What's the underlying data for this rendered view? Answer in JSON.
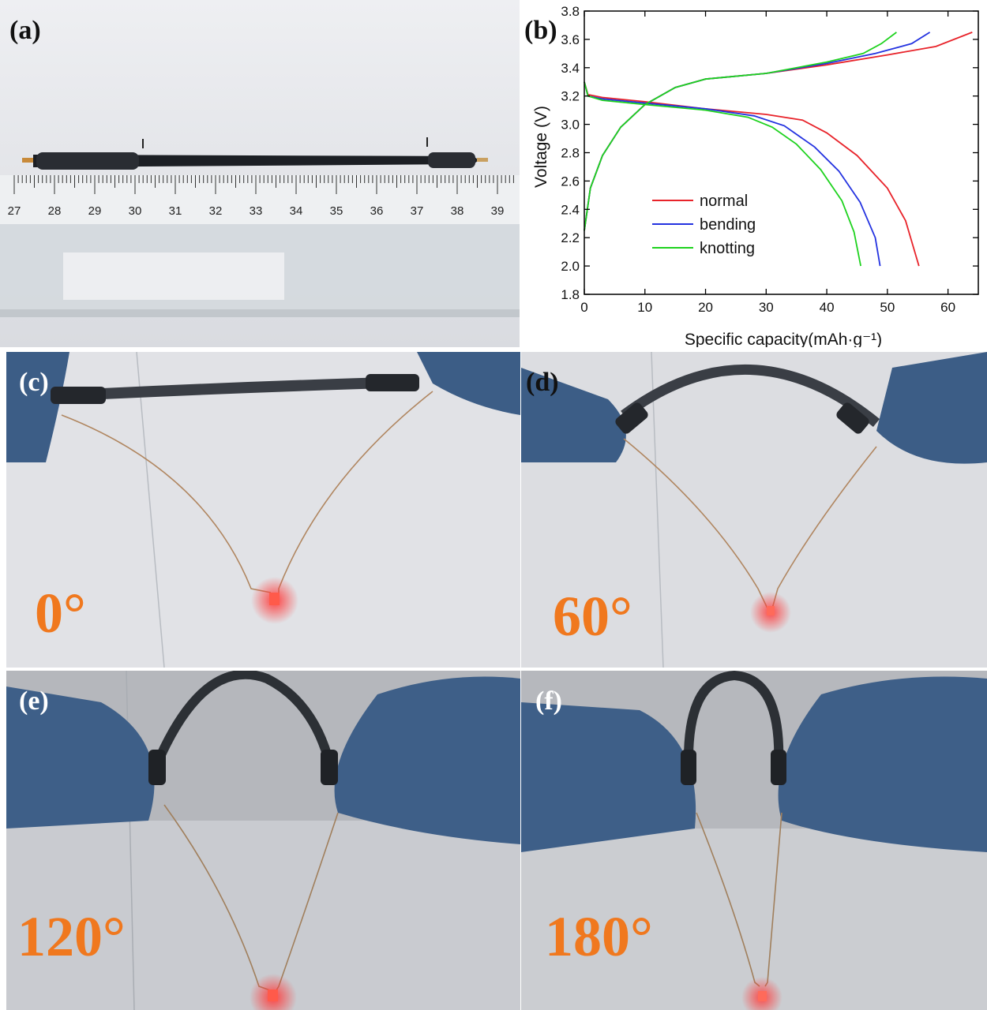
{
  "panels": {
    "a": {
      "label": "(a)",
      "ruler_ticks": [
        "27",
        "28",
        "29",
        "30",
        "31",
        "32",
        "33",
        "34",
        "35",
        "36",
        "37",
        "38",
        "39"
      ]
    },
    "b": {
      "label": "(b)"
    },
    "c": {
      "label": "(c)",
      "angle": "0°"
    },
    "d": {
      "label": "(d)",
      "angle": "60°"
    },
    "e": {
      "label": "(e)",
      "angle": "120°"
    },
    "f": {
      "label": "(f)",
      "angle": "180°"
    }
  },
  "chart_data": {
    "type": "line",
    "xlabel": "Specific capacity(mAh·g⁻¹)",
    "ylabel": "Voltage (V)",
    "xlim": [
      0,
      65
    ],
    "ylim": [
      1.8,
      3.8
    ],
    "xticks": [
      0,
      10,
      20,
      30,
      40,
      50,
      60
    ],
    "yticks": [
      1.8,
      2.0,
      2.2,
      2.4,
      2.6,
      2.8,
      3.0,
      3.2,
      3.4,
      3.6,
      3.8
    ],
    "legend_position": "center-left",
    "series": [
      {
        "name": "normal",
        "color": "#e8232a",
        "charge": [
          [
            0,
            2.25
          ],
          [
            1,
            2.55
          ],
          [
            3,
            2.78
          ],
          [
            6,
            2.98
          ],
          [
            10,
            3.14
          ],
          [
            15,
            3.26
          ],
          [
            20,
            3.32
          ],
          [
            30,
            3.36
          ],
          [
            40,
            3.42
          ],
          [
            50,
            3.49
          ],
          [
            58,
            3.55
          ],
          [
            64,
            3.65
          ]
        ],
        "discharge": [
          [
            0,
            3.3
          ],
          [
            0.6,
            3.21
          ],
          [
            3,
            3.19
          ],
          [
            10,
            3.16
          ],
          [
            20,
            3.11
          ],
          [
            30,
            3.07
          ],
          [
            36,
            3.03
          ],
          [
            40,
            2.94
          ],
          [
            45,
            2.78
          ],
          [
            50,
            2.55
          ],
          [
            53,
            2.32
          ],
          [
            55.2,
            2.0
          ]
        ]
      },
      {
        "name": "bending",
        "color": "#2332e0",
        "charge": [
          [
            0,
            2.25
          ],
          [
            1,
            2.55
          ],
          [
            3,
            2.78
          ],
          [
            6,
            2.98
          ],
          [
            10,
            3.14
          ],
          [
            15,
            3.26
          ],
          [
            20,
            3.32
          ],
          [
            30,
            3.36
          ],
          [
            40,
            3.43
          ],
          [
            48,
            3.5
          ],
          [
            54,
            3.57
          ],
          [
            57,
            3.65
          ]
        ],
        "discharge": [
          [
            0,
            3.3
          ],
          [
            0.6,
            3.2
          ],
          [
            3,
            3.18
          ],
          [
            10,
            3.15
          ],
          [
            20,
            3.11
          ],
          [
            28,
            3.06
          ],
          [
            33,
            2.99
          ],
          [
            38,
            2.84
          ],
          [
            42,
            2.67
          ],
          [
            45.5,
            2.45
          ],
          [
            48,
            2.2
          ],
          [
            48.8,
            2.0
          ]
        ]
      },
      {
        "name": "knotting",
        "color": "#1ed21e",
        "charge": [
          [
            0,
            2.25
          ],
          [
            1,
            2.55
          ],
          [
            3,
            2.78
          ],
          [
            6,
            2.98
          ],
          [
            10,
            3.14
          ],
          [
            15,
            3.26
          ],
          [
            20,
            3.32
          ],
          [
            30,
            3.36
          ],
          [
            40,
            3.44
          ],
          [
            46,
            3.5
          ],
          [
            49,
            3.57
          ],
          [
            51.5,
            3.65
          ]
        ],
        "discharge": [
          [
            0,
            3.3
          ],
          [
            0.6,
            3.2
          ],
          [
            3,
            3.17
          ],
          [
            10,
            3.14
          ],
          [
            20,
            3.1
          ],
          [
            27,
            3.05
          ],
          [
            31,
            2.98
          ],
          [
            35,
            2.86
          ],
          [
            39,
            2.68
          ],
          [
            42.5,
            2.46
          ],
          [
            44.5,
            2.24
          ],
          [
            45.6,
            2.0
          ]
        ]
      }
    ]
  }
}
